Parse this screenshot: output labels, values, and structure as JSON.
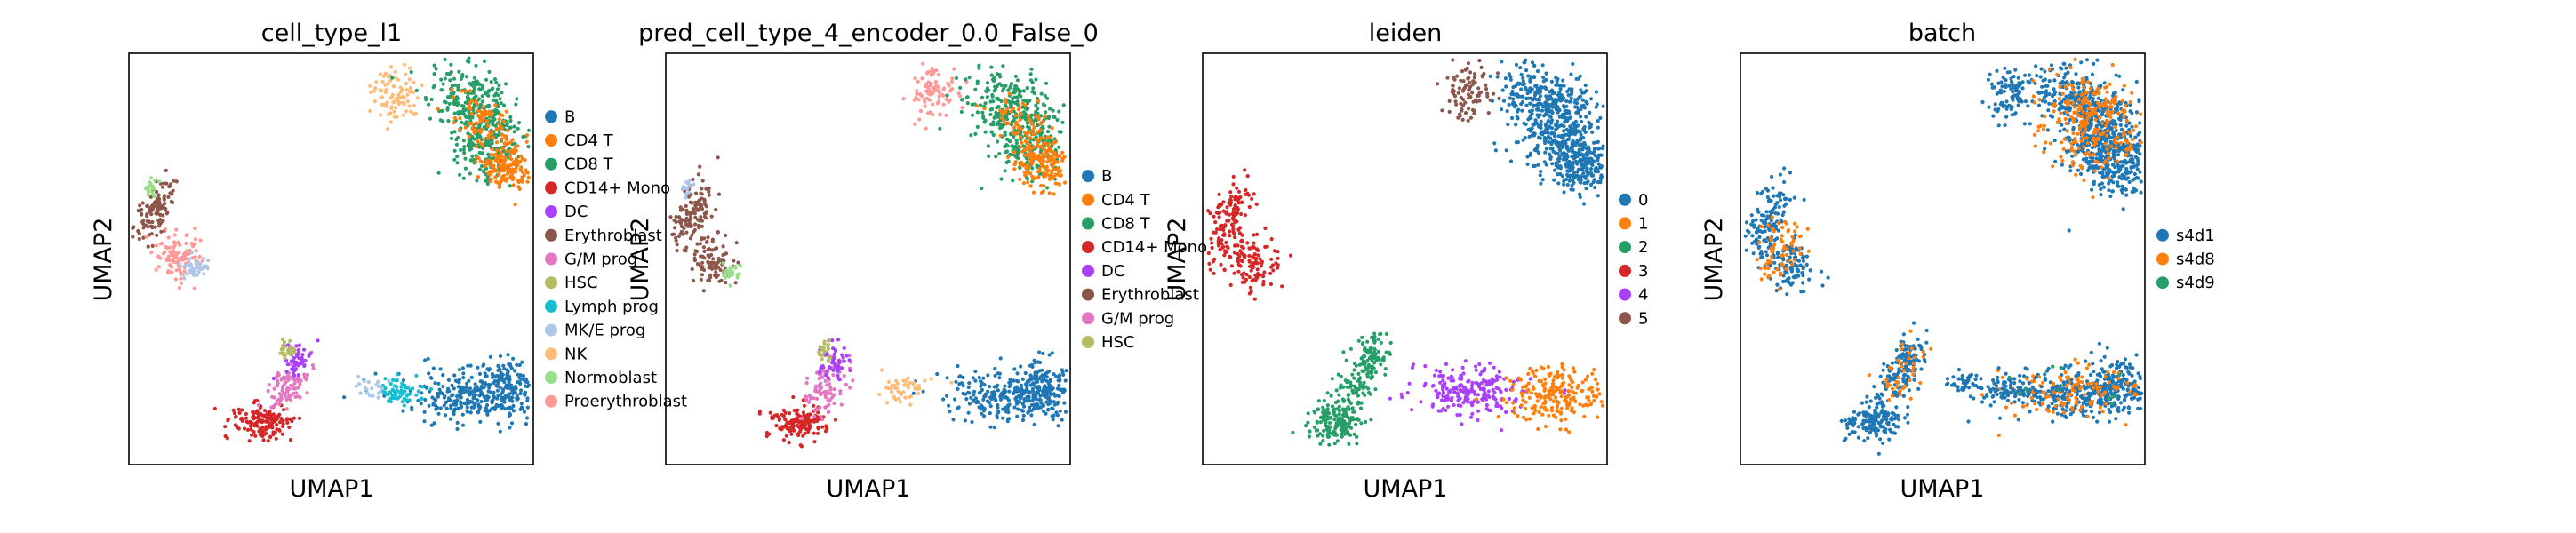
{
  "chart_data": [
    {
      "type": "scatter",
      "title": "cell_type_l1",
      "xlabel": "UMAP1",
      "ylabel": "UMAP2",
      "grid": false,
      "legend_placement": "right",
      "legend": [
        {
          "name": "B",
          "color": "#1f77b4"
        },
        {
          "name": "CD4 T",
          "color": "#ff7f0e"
        },
        {
          "name": "CD8 T",
          "color": "#279e68"
        },
        {
          "name": "CD14+ Mono",
          "color": "#d62728"
        },
        {
          "name": "DC",
          "color": "#aa40fc"
        },
        {
          "name": "Erythroblast",
          "color": "#8c564b"
        },
        {
          "name": "G/M prog",
          "color": "#e377c2"
        },
        {
          "name": "HSC",
          "color": "#b5bd61"
        },
        {
          "name": "Lymph prog",
          "color": "#17becf"
        },
        {
          "name": "MK/E prog",
          "color": "#aec7e8"
        },
        {
          "name": "NK",
          "color": "#ffbb78"
        },
        {
          "name": "Normoblast",
          "color": "#98df8a"
        },
        {
          "name": "Proerythroblast",
          "color": "#ff9896"
        }
      ]
    },
    {
      "type": "scatter",
      "title": "pred_cell_type_4_encoder_0.0_False_0",
      "xlabel": "UMAP1",
      "ylabel": "UMAP2",
      "grid": false,
      "legend_placement": "right",
      "legend": [
        {
          "name": "B",
          "color": "#1f77b4"
        },
        {
          "name": "CD4 T",
          "color": "#ff7f0e"
        },
        {
          "name": "CD8 T",
          "color": "#279e68"
        },
        {
          "name": "CD14+ Mono",
          "color": "#d62728"
        },
        {
          "name": "DC",
          "color": "#aa40fc"
        },
        {
          "name": "Erythroblast",
          "color": "#8c564b"
        },
        {
          "name": "G/M prog",
          "color": "#e377c2"
        },
        {
          "name": "HSC",
          "color": "#b5bd61"
        }
      ]
    },
    {
      "type": "scatter",
      "title": "leiden",
      "xlabel": "UMAP1",
      "ylabel": "UMAP2",
      "grid": false,
      "legend_placement": "right",
      "legend": [
        {
          "name": "0",
          "color": "#1f77b4"
        },
        {
          "name": "1",
          "color": "#ff7f0e"
        },
        {
          "name": "2",
          "color": "#279e68"
        },
        {
          "name": "3",
          "color": "#d62728"
        },
        {
          "name": "4",
          "color": "#aa40fc"
        },
        {
          "name": "5",
          "color": "#8c564b"
        }
      ]
    },
    {
      "type": "scatter",
      "title": "batch",
      "xlabel": "UMAP1",
      "ylabel": "UMAP2",
      "grid": false,
      "legend_placement": "right",
      "legend": [
        {
          "name": "s4d1",
          "color": "#1f77b4"
        },
        {
          "name": "s4d8",
          "color": "#ff7f0e"
        },
        {
          "name": "s4d9",
          "color": "#279e68"
        }
      ]
    }
  ]
}
